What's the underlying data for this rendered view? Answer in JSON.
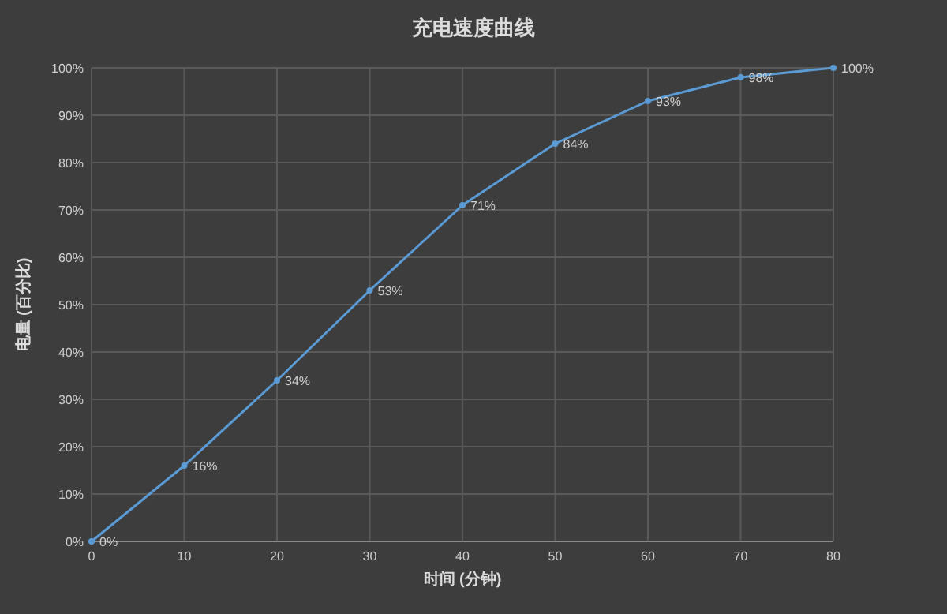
{
  "chart_data": {
    "type": "line",
    "title": "充电速度曲线",
    "xlabel": "时间 (分钟)",
    "ylabel": "电量 (百分比)",
    "x": [
      0,
      10,
      20,
      30,
      40,
      50,
      60,
      70,
      80
    ],
    "series": [
      {
        "color": "#5b9bd5",
        "values": [
          0,
          16,
          34,
          53,
          71,
          84,
          93,
          98,
          100
        ],
        "value_labels": [
          "0%",
          "16%",
          "34%",
          "53%",
          "71%",
          "84%",
          "93%",
          "98%",
          "100%"
        ]
      }
    ],
    "xlim": [
      0,
      80
    ],
    "xticks": [
      0,
      10,
      20,
      30,
      40,
      50,
      60,
      70,
      80
    ],
    "ylim": [
      0,
      100
    ],
    "yticks": [
      {
        "value": 0,
        "label": "0%"
      },
      {
        "value": 10,
        "label": "10%"
      },
      {
        "value": 20,
        "label": "20%"
      },
      {
        "value": 30,
        "label": "30%"
      },
      {
        "value": 40,
        "label": "40%"
      },
      {
        "value": 50,
        "label": "50%"
      },
      {
        "value": 60,
        "label": "60%"
      },
      {
        "value": 70,
        "label": "70%"
      },
      {
        "value": 80,
        "label": "80%"
      },
      {
        "value": 90,
        "label": "90%"
      },
      {
        "value": 100,
        "label": "100%"
      }
    ],
    "grid": true,
    "marker": "circle",
    "line_style": "solid"
  }
}
